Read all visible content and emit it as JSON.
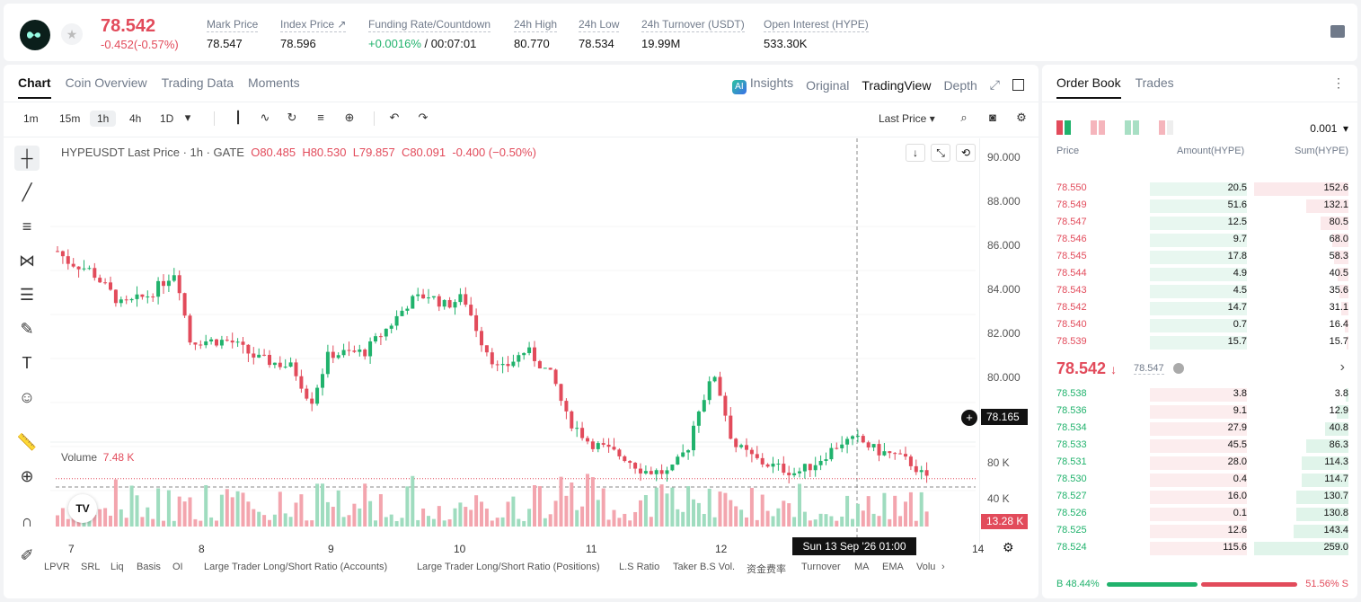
{
  "header": {
    "last_price": "78.542",
    "change": "-0.452(-0.57%)",
    "stats": [
      {
        "label": "Mark Price",
        "value": "78.547"
      },
      {
        "label": "Index Price ↗",
        "value": "78.596"
      },
      {
        "label": "Funding Rate/Countdown",
        "value_up": "+0.0016%",
        "value_rest": " / 00:07:01"
      },
      {
        "label": "24h High",
        "value": "80.770"
      },
      {
        "label": "24h Low",
        "value": "78.534"
      },
      {
        "label": "24h Turnover (USDT)",
        "value": "19.99M"
      },
      {
        "label": "Open Interest (HYPE)",
        "value": "533.30K"
      }
    ]
  },
  "chart_tabs": [
    "Chart",
    "Coin Overview",
    "Trading Data",
    "Moments"
  ],
  "chart_views": {
    "insights": "Insights",
    "original": "Original",
    "tradingview": "TradingView",
    "depth": "Depth"
  },
  "timeframes": [
    "1m",
    "15m",
    "1h",
    "4h",
    "1D"
  ],
  "price_type": "Last Price",
  "legend": {
    "symbol": "HYPEUSDT Last Price · 1h · GATE",
    "o": "O80.485",
    "h": "H80.530",
    "l": "L79.857",
    "c": "C80.091",
    "chg": "-0.400 (−0.50%)"
  },
  "volume_label": "Volume",
  "volume_value": "7.48 K",
  "price_tag": "78.165",
  "vol_tag": "13.28 K",
  "crosshair_time": "Sun 13 Sep '26   01:00",
  "y_axis_labels": [
    "90.000",
    "88.000",
    "86.000",
    "84.000",
    "82.000",
    "80.000"
  ],
  "vol_axis_labels": [
    "80 K",
    "40 K"
  ],
  "x_axis_labels": [
    "7",
    "8",
    "9",
    "10",
    "11",
    "12",
    "14"
  ],
  "indicators": [
    "LPVR",
    "SRL",
    "Liq",
    "Basis",
    "OI",
    "Large Trader Long/Short Ratio (Accounts)",
    "Large Trader Long/Short Ratio (Positions)",
    "L.S Ratio",
    "Taker B.S Vol.",
    "资金费率",
    "Turnover",
    "MA",
    "EMA",
    "Volu"
  ],
  "orderbook": {
    "tabs": [
      "Order Book",
      "Trades"
    ],
    "precision": "0.001",
    "headers": {
      "price": "Price",
      "amount": "Amount(HYPE)",
      "sum": "Sum(HYPE)"
    },
    "asks": [
      {
        "price": "78.550",
        "amount": "20.5",
        "sum": "152.6",
        "sumf": 1.0,
        "amtf": 0.18
      },
      {
        "price": "78.549",
        "amount": "51.6",
        "sum": "132.1",
        "sumf": 0.45,
        "amtf": 0.45
      },
      {
        "price": "78.547",
        "amount": "12.5",
        "sum": "80.5",
        "sumf": 0.3,
        "amtf": 0.11
      },
      {
        "price": "78.546",
        "amount": "9.7",
        "sum": "68.0",
        "sumf": 0.17,
        "amtf": 0.08
      },
      {
        "price": "78.545",
        "amount": "17.8",
        "sum": "58.3",
        "sumf": 0.15,
        "amtf": 0.15
      },
      {
        "price": "78.544",
        "amount": "4.9",
        "sum": "40.5",
        "sumf": 0.11,
        "amtf": 0.04
      },
      {
        "price": "78.543",
        "amount": "4.5",
        "sum": "35.6",
        "sumf": 0.1,
        "amtf": 0.04
      },
      {
        "price": "78.542",
        "amount": "14.7",
        "sum": "31.1",
        "sumf": 0.08,
        "amtf": 0.13
      },
      {
        "price": "78.540",
        "amount": "0.7",
        "sum": "16.4",
        "sumf": 0.04,
        "amtf": 0.01
      },
      {
        "price": "78.539",
        "amount": "15.7",
        "sum": "15.7",
        "sumf": 0.02,
        "amtf": 0.13
      }
    ],
    "mid_price": "78.542",
    "mid_mark": "78.547",
    "bids": [
      {
        "price": "78.538",
        "amount": "3.8",
        "sum": "3.8",
        "sumf": 0.03,
        "amtf": 0.03
      },
      {
        "price": "78.536",
        "amount": "9.1",
        "sum": "12.9",
        "sumf": 0.12,
        "amtf": 0.08
      },
      {
        "price": "78.534",
        "amount": "27.9",
        "sum": "40.8",
        "sumf": 0.25,
        "amtf": 0.24
      },
      {
        "price": "78.533",
        "amount": "45.5",
        "sum": "86.3",
        "sumf": 0.45,
        "amtf": 0.4
      },
      {
        "price": "78.531",
        "amount": "28.0",
        "sum": "114.3",
        "sumf": 0.5,
        "amtf": 0.24
      },
      {
        "price": "78.530",
        "amount": "0.4",
        "sum": "114.7",
        "sumf": 0.5,
        "amtf": 0.01
      },
      {
        "price": "78.527",
        "amount": "16.0",
        "sum": "130.7",
        "sumf": 0.55,
        "amtf": 0.14
      },
      {
        "price": "78.526",
        "amount": "0.1",
        "sum": "130.8",
        "sumf": 0.55,
        "amtf": 0.01
      },
      {
        "price": "78.525",
        "amount": "12.6",
        "sum": "143.4",
        "sumf": 0.58,
        "amtf": 0.11
      },
      {
        "price": "78.524",
        "amount": "115.6",
        "sum": "259.0",
        "sumf": 1.0,
        "amtf": 1.0
      }
    ],
    "buy_pct": "B 48.44%",
    "sell_pct": "51.56% S",
    "buy_ratio": 0.4844
  },
  "colors": {
    "up": "#20b26c",
    "down": "#e24b5b"
  }
}
